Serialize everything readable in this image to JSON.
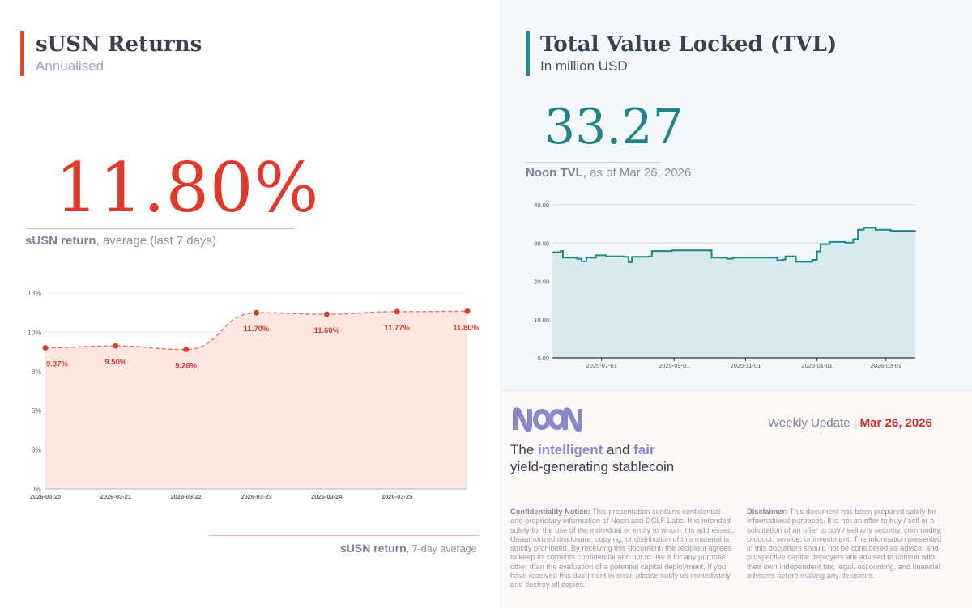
{
  "left": {
    "title": "sUSN Returns",
    "subtitle": "Annualised",
    "big_value": "11.80%",
    "caption_strong": "sUSN return",
    "caption_rest": ", average (last 7 days)",
    "footer_strong": "sUSN return",
    "footer_rest": ", 7-day average"
  },
  "tvl": {
    "title": "Total Value Locked (TVL)",
    "subtitle": "In million USD",
    "big_value": "33.27",
    "caption_strong": "Noon TVL",
    "caption_rest": ", as of Mar 26, 2026"
  },
  "info": {
    "weekly_label": "Weekly Update | ",
    "weekly_date": "Mar 26, 2026",
    "tagline_the": "The ",
    "tagline_intelligent": "intelligent",
    "tagline_and": " and ",
    "tagline_fair": "fair",
    "tagline_line2": "yield-generating stablecoin",
    "conf_title": "Confidentiality Notice:",
    "conf_body": " This presentation contains confidential and proprietary information of Noon and DCLF Labs. It is intended solely for the use of the individual or entity to whom it is addressed. Unauthorized disclosure, copying, or distribution of this material is strictly prohibited. By receiving this document, the recipient agrees to keep its contents confidential and not to use it for any purpose other than the evaluation of a potential capital deployment. If you have received this document in error, please notify us immediately and destroy all copies.",
    "disc_title": "Disclaimer:",
    "disc_body": " This document has been prepared solely for informational purposes. It is not an offer to buy / sell or a solicitation of an offer to buy / sell any security, commodity, product, service, or investment. The information presented in this document should not be considered as advice, and prospective capital deployers are advised to consult with their own independent tax, legal, accounting, and financial advisers before making any decisions."
  },
  "logo": {
    "text": "NOON"
  },
  "colors": {
    "accent_red": "#e0382a",
    "accent_teal": "#1e8488",
    "accent_purple": "#8a88cc"
  },
  "chart_data": [
    {
      "type": "area",
      "title": "sUSN return, 7-day average",
      "x": [
        "2026-03-20",
        "2026-03-21",
        "2026-03-22",
        "2026-03-23",
        "2026-03-24",
        "2026-03-25",
        "2026-03-26"
      ],
      "x_tick_labels": [
        "2026-03-20",
        "2026-03-21",
        "2026-03-22",
        "2026-03-23",
        "2026-03-24",
        "2026-03-25"
      ],
      "values": [
        9.37,
        9.5,
        9.26,
        11.7,
        11.6,
        11.77,
        11.8
      ],
      "data_labels": [
        "9.37%",
        "9.50%",
        "9.26%",
        "11.70%",
        "11.60%",
        "11.77%",
        "11.80%"
      ],
      "y_ticks": [
        0,
        2.6,
        5.2,
        7.8,
        10.4,
        13
      ],
      "y_tick_labels": [
        "0%",
        "3%",
        "5%",
        "8%",
        "10%",
        "13%"
      ],
      "ylim": [
        0,
        13
      ],
      "xlabel": "",
      "ylabel": ""
    },
    {
      "type": "area",
      "title": "Noon TVL (million USD)",
      "x_tick_labels": [
        "2025-07-01",
        "2025-09-01",
        "2025-11-01",
        "2026-01-01",
        "2026-03-01"
      ],
      "y_tick_labels": [
        "0.00",
        "10.00",
        "20.00",
        "30.00",
        "40.00"
      ],
      "ylim": [
        0,
        40
      ],
      "x_range": [
        "2025-05-20",
        "2026-03-26"
      ],
      "series": [
        {
          "name": "TVL",
          "points": [
            [
              "2025-05-20",
              27.6
            ],
            [
              "2025-05-27",
              27.9
            ],
            [
              "2025-05-29",
              26.2
            ],
            [
              "2025-06-10",
              25.9
            ],
            [
              "2025-06-14",
              25.2
            ],
            [
              "2025-06-18",
              26.2
            ],
            [
              "2025-06-26",
              26.8
            ],
            [
              "2025-07-05",
              26.5
            ],
            [
              "2025-07-20",
              26.4
            ],
            [
              "2025-07-24",
              25.0
            ],
            [
              "2025-07-27",
              26.4
            ],
            [
              "2025-08-10",
              26.5
            ],
            [
              "2025-08-13",
              27.9
            ],
            [
              "2025-08-30",
              28.1
            ],
            [
              "2025-09-30",
              28.1
            ],
            [
              "2025-10-03",
              26.2
            ],
            [
              "2025-10-16",
              25.9
            ],
            [
              "2025-10-21",
              26.2
            ],
            [
              "2025-11-25",
              26.2
            ],
            [
              "2025-11-28",
              25.5
            ],
            [
              "2025-12-03",
              25.7
            ],
            [
              "2025-12-05",
              26.5
            ],
            [
              "2025-12-12",
              26.5
            ],
            [
              "2025-12-14",
              25.1
            ],
            [
              "2025-12-28",
              25.6
            ],
            [
              "2026-01-01",
              27.8
            ],
            [
              "2026-01-04",
              29.7
            ],
            [
              "2026-01-12",
              30.3
            ],
            [
              "2026-01-25",
              30.1
            ],
            [
              "2026-02-01",
              31.0
            ],
            [
              "2026-02-05",
              33.5
            ],
            [
              "2026-02-10",
              34.0
            ],
            [
              "2026-02-20",
              33.5
            ],
            [
              "2026-03-05",
              33.2
            ],
            [
              "2026-03-26",
              33.27
            ]
          ]
        }
      ]
    }
  ]
}
